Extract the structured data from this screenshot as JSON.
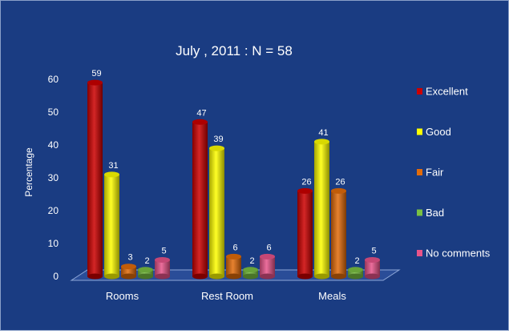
{
  "chart_data": {
    "type": "bar",
    "title": "July ,  2011  :  N = 58",
    "xlabel": "",
    "ylabel": "Percentage",
    "ylim": [
      0,
      60
    ],
    "yticks": [
      0,
      10,
      20,
      30,
      40,
      50,
      60
    ],
    "grid": false,
    "legend_position": "right",
    "categories": [
      "Rooms",
      "Rest Room",
      "Meals"
    ],
    "series": [
      {
        "name": "Excellent",
        "color": "#cc0000",
        "values": [
          59,
          47,
          26
        ]
      },
      {
        "name": "Good",
        "color": "#ffff00",
        "values": [
          31,
          39,
          41
        ]
      },
      {
        "name": "Fair",
        "color": "#e36c0a",
        "values": [
          3,
          6,
          26
        ]
      },
      {
        "name": "Bad",
        "color": "#7ac143",
        "values": [
          2,
          2,
          2
        ]
      },
      {
        "name": "No comments",
        "color": "#e8548a",
        "values": [
          5,
          6,
          5
        ]
      }
    ]
  },
  "colors": {
    "background": "#1a3c82",
    "text": "#ffffff",
    "floor": "#2a4d98"
  }
}
